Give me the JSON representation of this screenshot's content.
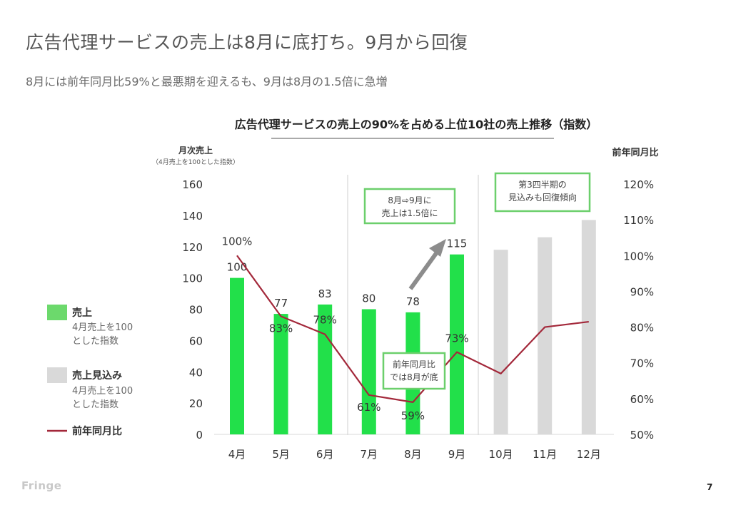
{
  "slide": {
    "title": "広告代理サービスの売上は8月に底打ち。9月から回復",
    "subtitle": "8月には前年同月比59%と最悪期を迎えるも、9月は8月の1.5倍に急増",
    "footer_logo": "Fringe",
    "page_number": "7"
  },
  "colors": {
    "actual_bar": "#22e04a",
    "forecast_bar": "#d9d9d9",
    "yoy_line": "#a3283a",
    "annotation_border": "#6ccf6c",
    "arrow": "#8c8c8c",
    "legend_actual": "#6cd96c"
  },
  "chart_data": {
    "type": "bar",
    "title": "広告代理サービスの売上の90%を占める上位10社の売上推移（指数）",
    "categories": [
      "4月",
      "5月",
      "6月",
      "7月",
      "8月",
      "9月",
      "10月",
      "11月",
      "12月"
    ],
    "ylabel": "月次売上",
    "ylabel_note": "（4月売上を100とした指数）",
    "y2label": "前年同月比",
    "ylim": [
      0,
      160
    ],
    "yticks": [
      "0",
      "20",
      "40",
      "60",
      "80",
      "100",
      "120",
      "140",
      "160"
    ],
    "y2lim": [
      0.5,
      1.2
    ],
    "y2ticks": [
      "50%",
      "60%",
      "70%",
      "80%",
      "90%",
      "100%",
      "110%",
      "120%"
    ],
    "grid": false,
    "series": [
      {
        "name": "売上",
        "kind": "bar",
        "values": [
          100,
          77,
          83,
          80,
          78,
          115,
          null,
          null,
          null
        ],
        "labels": [
          "100",
          "77",
          "83",
          "80",
          "78",
          "115",
          "",
          "",
          ""
        ]
      },
      {
        "name": "売上見込み",
        "kind": "bar",
        "values": [
          null,
          null,
          null,
          null,
          null,
          null,
          118,
          126,
          137
        ],
        "labels": [
          "",
          "",
          "",
          "",
          "",
          "",
          "",
          "",
          ""
        ]
      },
      {
        "name": "前年同月比",
        "kind": "line",
        "axis": "right",
        "values": [
          1.0,
          0.83,
          0.78,
          0.61,
          0.59,
          0.73,
          0.67,
          0.8,
          0.815
        ],
        "labels": [
          "100%",
          "83%",
          "78%",
          "61%",
          "59%",
          "73%",
          "",
          "",
          ""
        ]
      }
    ],
    "legend": [
      {
        "name": "売上",
        "desc_1": "4月売上を100",
        "desc_2": "とした指数"
      },
      {
        "name": "売上見込み",
        "desc_1": "4月売上を100",
        "desc_2": "とした指数"
      },
      {
        "name": "前年同月比"
      }
    ],
    "legend_position": "left",
    "annotations": [
      {
        "line_1": "8月⇨9月に",
        "line_2": "売上は1.5倍に"
      },
      {
        "line_1": "第3四半期の",
        "line_2": "見込みも回復傾向"
      },
      {
        "line_1": "前年同月比",
        "line_2": "では8月が底"
      }
    ]
  }
}
